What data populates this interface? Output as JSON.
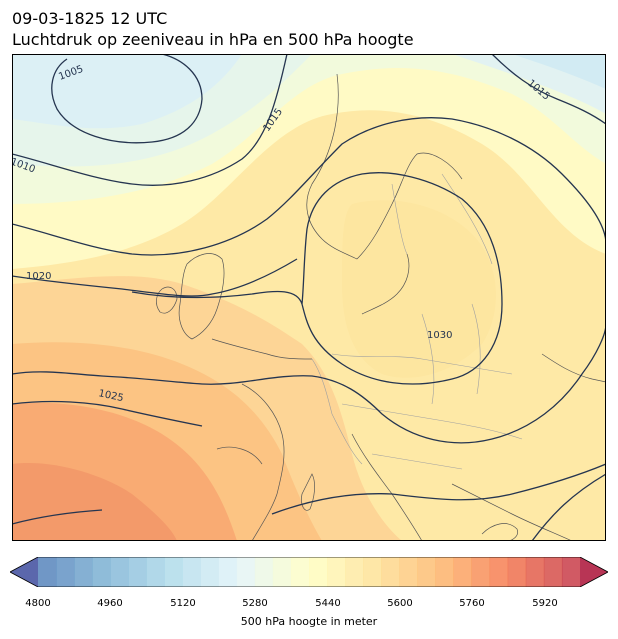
{
  "title": {
    "line1": "09-03-1825 12 UTC",
    "line2": "Luchtdruk op zeeniveau in hPa en 500 hPa hoogte"
  },
  "map": {
    "fill_variable": "500 hPa height",
    "contour_variable": "sea level pressure",
    "isobar_labels": [
      "1005",
      "1010",
      "1015",
      "1015",
      "1020",
      "1025",
      "1030"
    ],
    "colors": {
      "isobar": "#253550",
      "coastline": "#555555",
      "border": "#a0a0a0"
    }
  },
  "colorbar": {
    "label": "500 hPa hoogte in meter",
    "min": 4800,
    "max": 6000,
    "step": 40,
    "ticks": [
      "4800",
      "4960",
      "5120",
      "5280",
      "5440",
      "5600",
      "5760",
      "5920"
    ],
    "colormap": "RdYlBu_r",
    "extend": "both"
  }
}
